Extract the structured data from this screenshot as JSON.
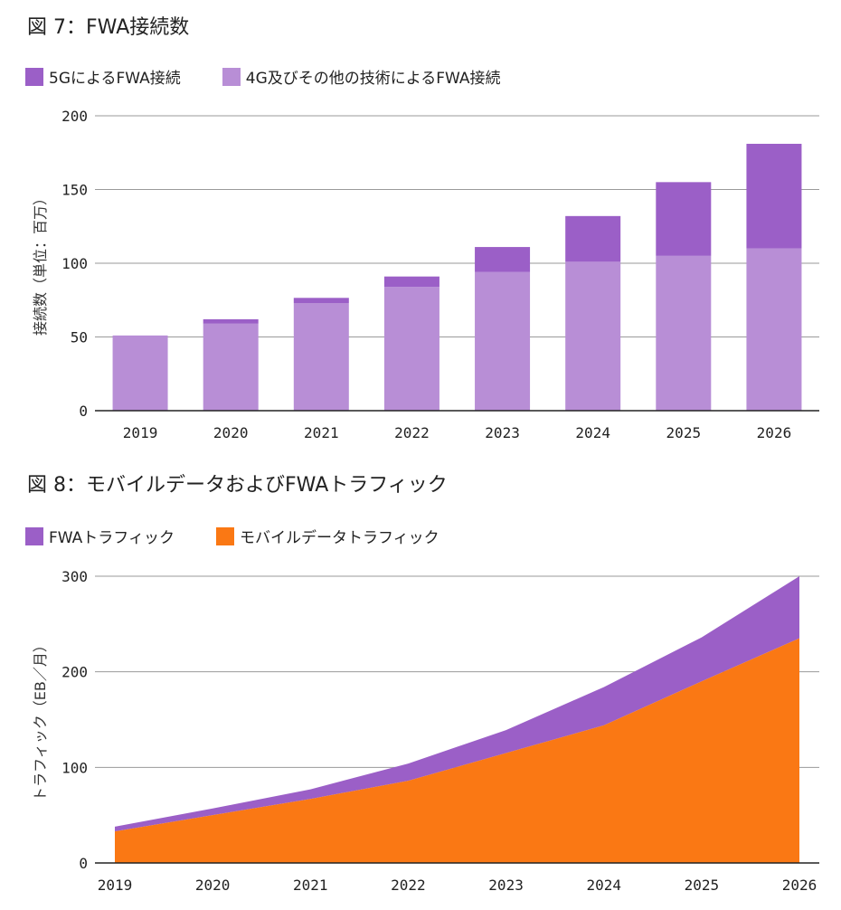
{
  "chart_data": [
    {
      "type": "bar",
      "stacked": true,
      "title": "図 7：FWA接続数",
      "xlabel": "",
      "ylabel": "接続数（単位：百万）",
      "categories": [
        "2019",
        "2020",
        "2021",
        "2022",
        "2023",
        "2024",
        "2025",
        "2026"
      ],
      "series": [
        {
          "name": "4G及びその他の技術によるFWA接続",
          "color": "#b88ed6",
          "values": [
            51,
            59,
            73,
            84,
            94,
            101,
            105,
            110
          ]
        },
        {
          "name": "5GによるFWA接続",
          "color": "#9b5fc7",
          "values": [
            0,
            3,
            3.5,
            7,
            17,
            31,
            50,
            71
          ]
        }
      ],
      "legend_order": [
        "5GによるFWA接続",
        "4G及びその他の技術によるFWA接続"
      ],
      "ylim": [
        0,
        200
      ],
      "yticks": [
        0,
        50,
        100,
        150,
        200
      ],
      "grid": true,
      "legend": "top-left"
    },
    {
      "type": "area",
      "stacked": true,
      "title": "図 8：モバイルデータおよびFWAトラフィック",
      "xlabel": "",
      "ylabel": "トラフィック（EB／月）",
      "x": [
        "2019",
        "2020",
        "2021",
        "2022",
        "2023",
        "2024",
        "2025",
        "2026"
      ],
      "series": [
        {
          "name": "モバイルデータトラフィック",
          "color": "#fa7814",
          "values": [
            33,
            50,
            67,
            86,
            115,
            144,
            190,
            235
          ]
        },
        {
          "name": "FWAトラフィック",
          "color": "#9b5fc7",
          "values": [
            5,
            7,
            10,
            18,
            24,
            40,
            46,
            65
          ]
        }
      ],
      "legend_order": [
        "FWAトラフィック",
        "モバイルデータトラフィック"
      ],
      "ylim": [
        0,
        300
      ],
      "yticks": [
        0,
        100,
        200,
        300
      ],
      "grid": true,
      "legend": "top-left"
    }
  ]
}
